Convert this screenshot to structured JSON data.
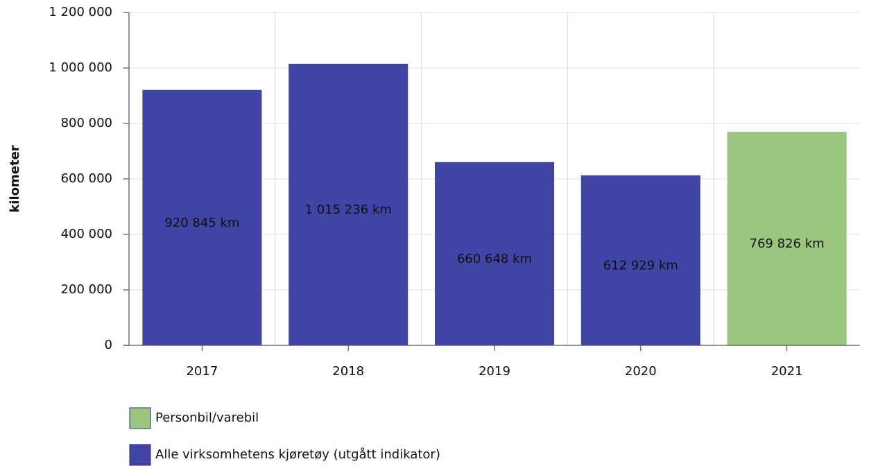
{
  "chart_data": {
    "type": "bar",
    "y_label": "kilometer",
    "categories": [
      "2017",
      "2018",
      "2019",
      "2020",
      "2021"
    ],
    "series": [
      {
        "name": "Personbil/varebil",
        "color": "#9bc57e",
        "values": [
          null,
          null,
          null,
          null,
          769826
        ],
        "value_labels": [
          null,
          null,
          null,
          null,
          "769 826 km"
        ]
      },
      {
        "name": "Alle virksomhetens kjøretøy (utgått indikator)",
        "color": "#3f44a5",
        "values": [
          920845,
          1015236,
          660648,
          612929,
          null
        ],
        "value_labels": [
          "920 845 km",
          "1 015 236 km",
          "660 648 km",
          "612 929 km",
          null
        ]
      }
    ],
    "ylim": [
      0,
      1200000
    ],
    "yticks": [
      0,
      {
        "value": 200000,
        "label": "200 000"
      },
      {
        "value": 400000,
        "label": "400 000"
      },
      {
        "value": 600000,
        "label": "600 000"
      },
      {
        "value": 800000,
        "label": "800 000"
      },
      {
        "value": 1000000,
        "label": "1 000 000"
      },
      {
        "value": 1200000,
        "label": "1 200 000"
      }
    ],
    "grid": true
  }
}
